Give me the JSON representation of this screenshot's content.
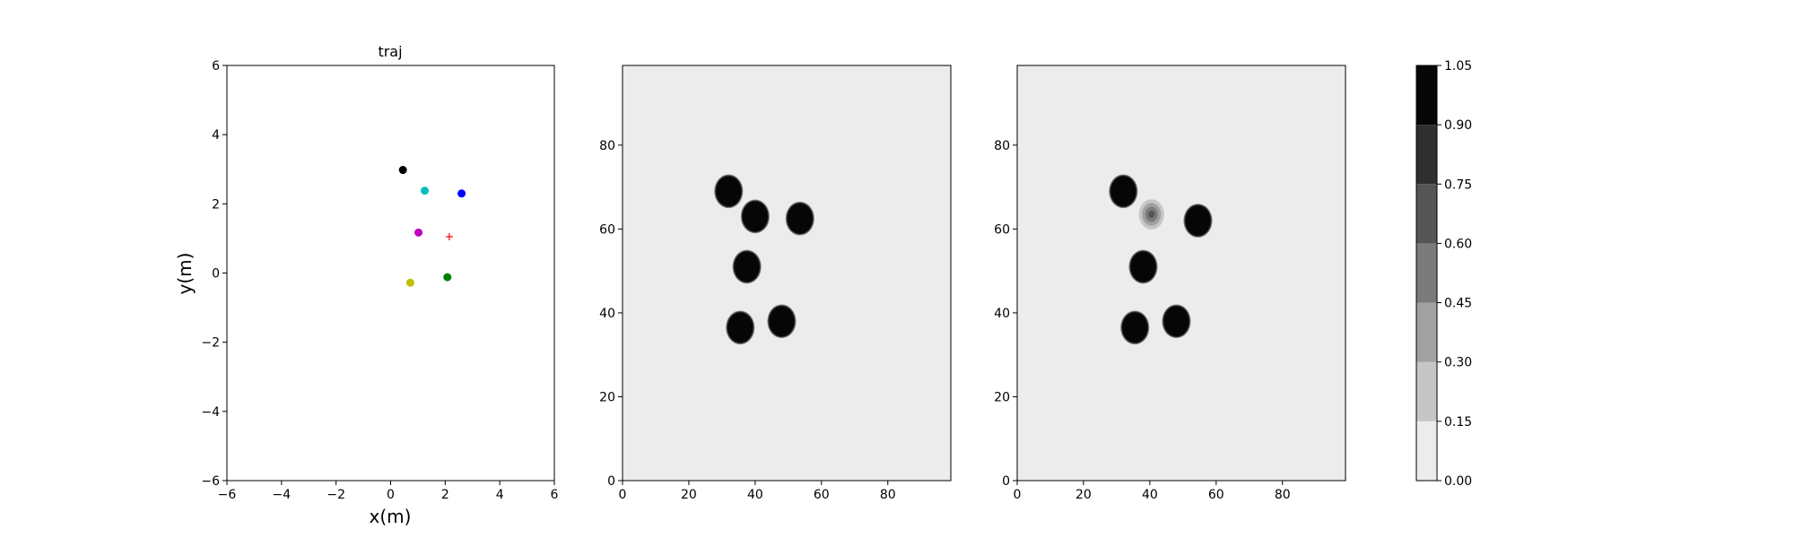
{
  "chart_data": [
    {
      "type": "scatter",
      "title": "traj",
      "xlabel": "x(m)",
      "ylabel": "y(m)",
      "xlim": [
        -6,
        6
      ],
      "ylim": [
        -6,
        6
      ],
      "xticks": [
        "−6",
        "−4",
        "−2",
        "0",
        "2",
        "4",
        "6"
      ],
      "yticks": [
        "−6",
        "−4",
        "−2",
        "0",
        "2",
        "4",
        "6"
      ],
      "grid": false,
      "points": [
        {
          "x": 0.45,
          "y": 2.98,
          "color": "#000000",
          "marker": "circle"
        },
        {
          "x": 1.25,
          "y": 2.38,
          "color": "#00bfbf",
          "marker": "circle"
        },
        {
          "x": 2.6,
          "y": 2.3,
          "color": "#0000ff",
          "marker": "circle"
        },
        {
          "x": 1.02,
          "y": 1.17,
          "color": "#bf00bf",
          "marker": "circle"
        },
        {
          "x": 2.15,
          "y": 1.05,
          "color": "#ff0000",
          "marker": "plus"
        },
        {
          "x": 2.08,
          "y": -0.12,
          "color": "#008000",
          "marker": "circle"
        },
        {
          "x": 0.72,
          "y": -0.28,
          "color": "#bfbf00",
          "marker": "circle"
        }
      ]
    },
    {
      "type": "heatmap",
      "xlim": [
        0,
        99
      ],
      "ylim": [
        0,
        99
      ],
      "xticks": [
        "0",
        "20",
        "40",
        "60",
        "80"
      ],
      "yticks": [
        "0",
        "20",
        "40",
        "60",
        "80"
      ],
      "blobs": [
        {
          "x": 32,
          "y": 69,
          "level": 1.0
        },
        {
          "x": 40,
          "y": 63,
          "level": 1.0
        },
        {
          "x": 53.5,
          "y": 62.5,
          "level": 1.0
        },
        {
          "x": 37.5,
          "y": 51,
          "level": 1.0
        },
        {
          "x": 35.5,
          "y": 36.5,
          "level": 1.0
        },
        {
          "x": 48,
          "y": 38,
          "level": 1.0
        }
      ]
    },
    {
      "type": "heatmap",
      "xlim": [
        0,
        99
      ],
      "ylim": [
        0,
        99
      ],
      "xticks": [
        "0",
        "20",
        "40",
        "60",
        "80"
      ],
      "yticks": [
        "0",
        "20",
        "40",
        "60",
        "80"
      ],
      "blobs": [
        {
          "x": 32,
          "y": 69,
          "level": 1.0
        },
        {
          "x": 40.5,
          "y": 63.5,
          "level": 0.6
        },
        {
          "x": 54.5,
          "y": 62,
          "level": 1.0
        },
        {
          "x": 38,
          "y": 51,
          "level": 1.0
        },
        {
          "x": 35.5,
          "y": 36.5,
          "level": 1.0
        },
        {
          "x": 48,
          "y": 38,
          "level": 1.0
        }
      ]
    }
  ],
  "colorbar": {
    "ticks": [
      "0.00",
      "0.15",
      "0.30",
      "0.45",
      "0.60",
      "0.75",
      "0.90",
      "1.05"
    ],
    "values": [
      0,
      0.15,
      0.3,
      0.45,
      0.6,
      0.75,
      0.9,
      1.05
    ],
    "colors": [
      "#ececec",
      "#c6c6c6",
      "#a1a1a1",
      "#7b7b7b",
      "#555555",
      "#2f2f2f",
      "#060606"
    ]
  }
}
